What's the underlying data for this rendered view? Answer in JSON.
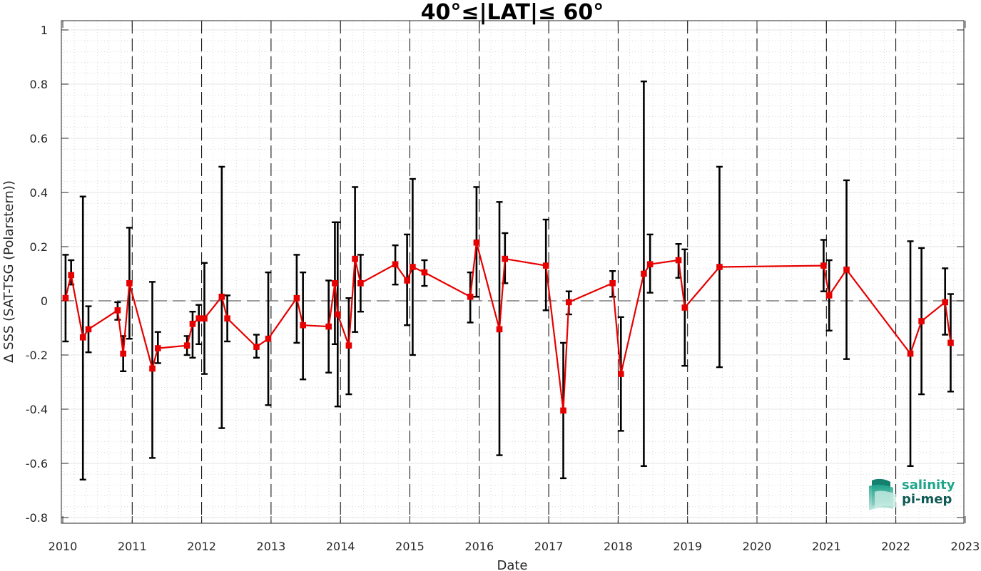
{
  "chart_data": {
    "type": "line",
    "title": "40°≤|LAT|≤ 60°",
    "xlabel": "Date",
    "ylabel": "Δ SSS (SAT-TSG (Polarstern))",
    "xlim": [
      2010,
      2023
    ],
    "ylim": [
      -0.83,
      1.03
    ],
    "xticks": [
      2010,
      2011,
      2012,
      2013,
      2014,
      2015,
      2016,
      2017,
      2018,
      2019,
      2020,
      2021,
      2022,
      2023
    ],
    "xtick_labels": [
      "2010",
      "2011",
      "2012",
      "2013",
      "2014",
      "2015",
      "2016",
      "2017",
      "2018",
      "2019",
      "2020",
      "2021",
      "2022",
      "2023"
    ],
    "yticks": [
      -0.8,
      -0.6,
      -0.4,
      -0.2,
      0,
      0.2,
      0.4,
      0.6,
      0.8,
      1
    ],
    "ytick_labels": [
      "-0.8",
      "-0.6",
      "-0.4",
      "-0.2",
      "0",
      "0.2",
      "0.4",
      "0.6",
      "0.8",
      "1"
    ],
    "grid": "minor dotted",
    "zero_line": "dashed",
    "year_boundaries": "dashed vertical lines",
    "series": [
      {
        "color": "#e60000",
        "marker": "square",
        "errorbar_color": "#000000",
        "x": [
          2010.04,
          2010.12,
          2010.29,
          2010.37,
          2010.79,
          2010.87,
          2010.96,
          2011.29,
          2011.37,
          2011.79,
          2011.87,
          2011.96,
          2012.04,
          2012.29,
          2012.37,
          2012.79,
          2012.96,
          2013.37,
          2013.46,
          2013.83,
          2013.92,
          2013.96,
          2014.12,
          2014.21,
          2014.29,
          2014.79,
          2014.96,
          2015.04,
          2015.21,
          2015.87,
          2015.96,
          2016.29,
          2016.37,
          2016.96,
          2017.21,
          2017.29,
          2017.92,
          2018.04,
          2018.37,
          2018.46,
          2018.87,
          2018.96,
          2019.46,
          2020.96,
          2021.04,
          2021.29,
          2022.21,
          2022.37,
          2022.71,
          2022.79
        ],
        "y": [
          0.01,
          0.095,
          -0.135,
          -0.105,
          -0.035,
          -0.195,
          0.065,
          -0.25,
          -0.175,
          -0.165,
          -0.085,
          -0.065,
          -0.065,
          0.015,
          -0.065,
          -0.17,
          -0.14,
          0.01,
          -0.09,
          -0.095,
          0.065,
          -0.05,
          -0.165,
          0.155,
          0.065,
          0.135,
          0.075,
          0.125,
          0.105,
          0.015,
          0.215,
          -0.105,
          0.155,
          0.13,
          -0.405,
          -0.005,
          0.065,
          -0.27,
          0.1,
          0.135,
          0.15,
          -0.025,
          0.125,
          0.13,
          0.02,
          0.115,
          -0.195,
          -0.075,
          -0.005,
          -0.155
        ],
        "err_low": [
          -0.15,
          0.06,
          -0.66,
          -0.19,
          -0.07,
          -0.26,
          -0.14,
          -0.58,
          -0.23,
          -0.2,
          -0.21,
          -0.16,
          -0.27,
          -0.47,
          -0.15,
          -0.21,
          -0.385,
          -0.155,
          -0.29,
          -0.265,
          -0.16,
          -0.39,
          -0.345,
          -0.115,
          -0.04,
          0.06,
          -0.09,
          -0.2,
          0.055,
          -0.08,
          0.015,
          -0.57,
          0.065,
          -0.035,
          -0.655,
          -0.05,
          0.015,
          -0.48,
          -0.61,
          0.03,
          0.085,
          -0.24,
          -0.245,
          0.035,
          -0.11,
          -0.215,
          -0.61,
          -0.345,
          -0.125,
          -0.335
        ],
        "err_high": [
          0.17,
          0.15,
          0.385,
          -0.02,
          -0.005,
          -0.13,
          0.27,
          0.07,
          -0.115,
          -0.13,
          -0.04,
          -0.015,
          0.14,
          0.495,
          0.02,
          -0.125,
          0.105,
          0.17,
          0.105,
          0.075,
          0.29,
          0.29,
          0.01,
          0.42,
          0.17,
          0.205,
          0.245,
          0.45,
          0.15,
          0.105,
          0.42,
          0.365,
          0.25,
          0.3,
          -0.155,
          0.035,
          0.11,
          -0.06,
          0.81,
          0.245,
          0.21,
          0.19,
          0.495,
          0.225,
          0.15,
          0.445,
          0.22,
          0.195,
          0.12,
          0.025
        ]
      }
    ]
  },
  "logo": {
    "line1": "salinity",
    "line2": "pi-mep",
    "color1": "#1fa58c",
    "color2": "#0e5a55"
  }
}
